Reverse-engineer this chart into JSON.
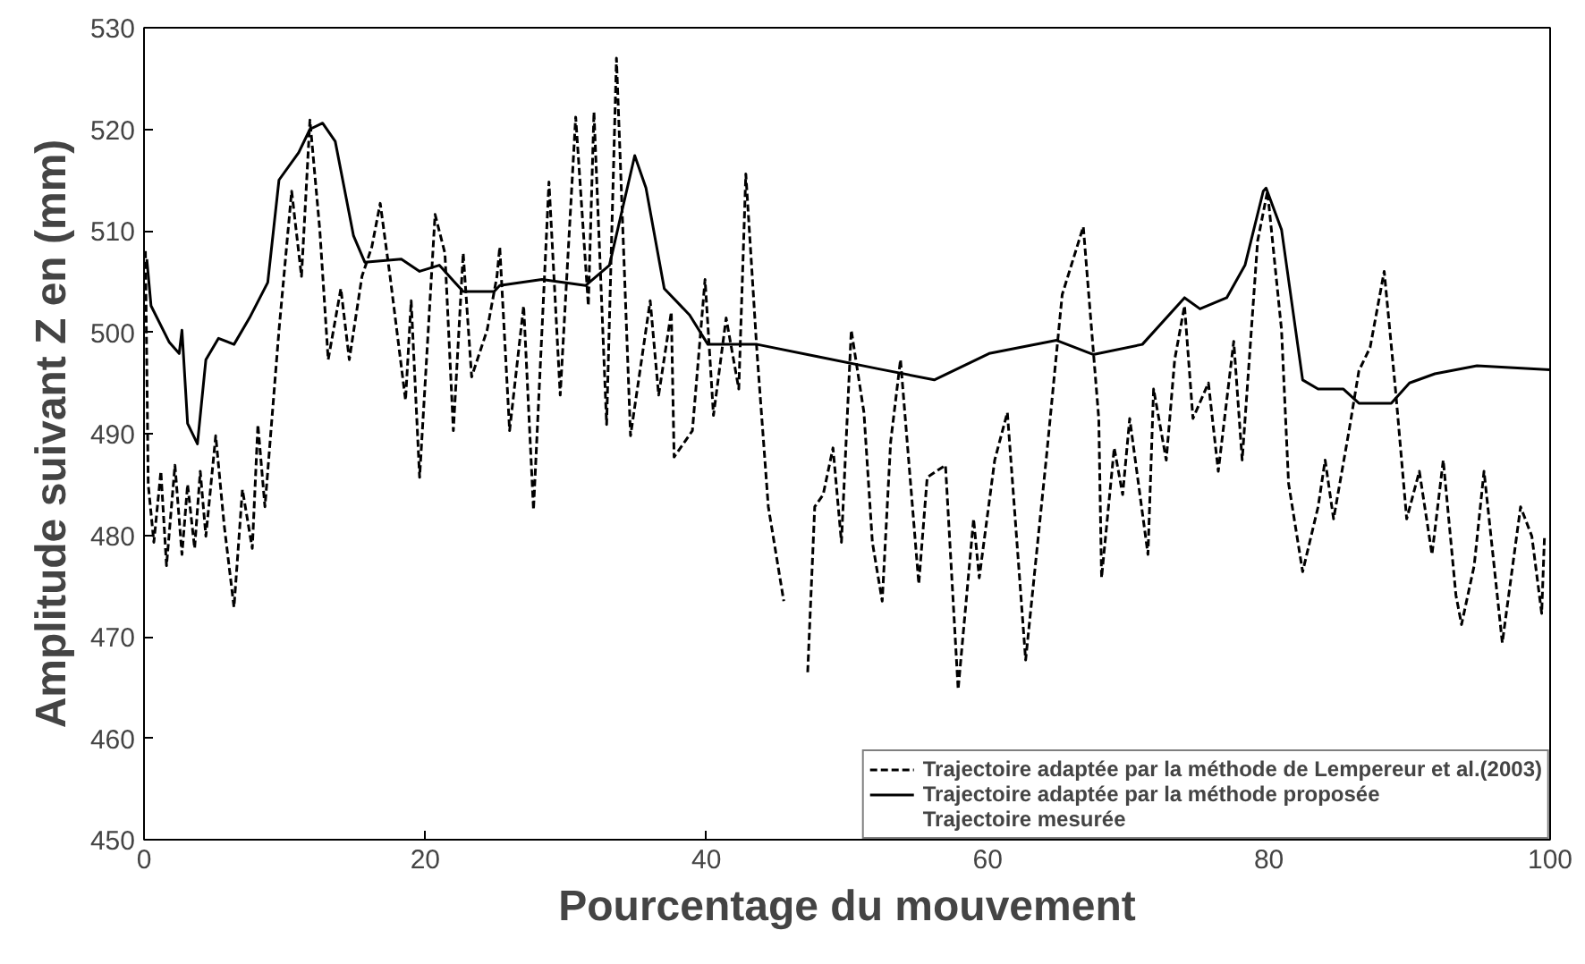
{
  "chart_data": {
    "type": "line",
    "xlabel": "Pourcentage du mouvement",
    "ylabel": "Amplitude suivant Z en (mm)",
    "xlim": [
      0,
      100
    ],
    "ylim": [
      450,
      530
    ],
    "xticks": [
      0,
      20,
      40,
      60,
      80,
      100
    ],
    "yticks": [
      450,
      460,
      470,
      480,
      490,
      500,
      510,
      520,
      530
    ],
    "grid": false,
    "legend": "bottom right",
    "annotations": [
      "Trajectoire mesurée"
    ],
    "series": [
      {
        "name": "Trajectoire adaptée par la méthode de Lempereur et al.(2003)",
        "color": "#000000",
        "line_style": "dashed",
        "x": [
          0.1,
          0.3,
          0.7,
          1.2,
          1.6,
          2.2,
          2.7,
          3.1,
          3.6,
          4.0,
          4.4,
          5.1,
          5.7,
          6.4,
          7.0,
          7.7,
          8.1,
          8.6,
          9.0,
          9.6,
          10.5,
          11.2,
          11.8,
          12.5,
          13.1,
          14.0,
          14.6,
          15.5,
          16.2,
          16.8,
          17.5,
          18.6,
          19.0,
          19.6,
          20.7,
          21.4,
          22.0,
          22.7,
          23.3,
          24.4,
          25.1,
          25.3,
          26.0,
          27.0,
          27.7,
          28.8,
          29.6,
          30.7,
          31.6,
          32.0,
          32.9,
          33.6,
          34.6,
          36.0,
          36.6,
          37.5,
          37.7,
          39.0,
          39.9,
          40.5,
          41.4,
          42.3,
          42.8,
          43.6,
          44.4,
          45.5,
          46.3,
          47.2,
          47.7,
          48.3,
          49.0,
          49.6,
          50.3,
          51.2,
          51.8,
          52.5,
          53.1,
          53.8,
          55.1,
          55.7,
          57.0,
          57.9,
          59.0,
          59.4,
          60.5,
          61.4,
          62.7,
          64.2,
          65.3,
          66.8,
          67.9,
          68.1,
          69.0,
          69.6,
          70.1,
          71.4,
          71.8,
          72.7,
          73.3,
          74.0,
          74.6,
          75.7,
          76.4,
          77.5,
          78.1,
          79.2,
          79.9,
          80.9,
          81.4,
          82.4,
          83.5,
          84.0,
          84.6,
          85.7,
          86.4,
          87.2,
          88.2,
          89.0,
          89.8,
          90.7,
          91.6,
          92.4,
          93.3,
          93.7,
          94.6,
          95.3,
          96.6,
          97.9,
          98.7,
          99.4,
          99.6
        ],
        "values": [
          508,
          485,
          479.3,
          486.3,
          477,
          486.9,
          478.1,
          485,
          478.7,
          486.3,
          479.9,
          489.8,
          481,
          472.9,
          484.5,
          478.7,
          490.9,
          482.8,
          489.8,
          500.2,
          513.9,
          505.5,
          520.9,
          510.1,
          497.3,
          504.3,
          497.3,
          505.5,
          508.4,
          512.7,
          505.5,
          493.3,
          503.1,
          485.7,
          511.6,
          507.8,
          490.3,
          507.8,
          495.6,
          500.2,
          505.5,
          508.4,
          490.3,
          502.6,
          482.5,
          514.8,
          493.8,
          521.2,
          502.6,
          521.7,
          490.9,
          527,
          489.8,
          503.1,
          493.8,
          502,
          487.7,
          490.3,
          505.2,
          491.8,
          501.4,
          494.4,
          515.6,
          497.9,
          482.8,
          473.5,
          null,
          466.5,
          482.8,
          484,
          488.6,
          479.3,
          500.2,
          492.1,
          479.3,
          473.5,
          489.2,
          497.3,
          475.2,
          485.7,
          486.9,
          464.8,
          481.6,
          475.8,
          487.4,
          492.1,
          467.7,
          488,
          503.7,
          510.4,
          491.5,
          475.8,
          488.6,
          484,
          491.5,
          478.1,
          494.4,
          487.4,
          497.3,
          502.6,
          491.5,
          495,
          486.3,
          499.1,
          487.4,
          509,
          513.9,
          500.2,
          485.1,
          476.4,
          482.8,
          487.4,
          481.6,
          490.3,
          496.2,
          498.5,
          506,
          494.4,
          481.6,
          486.3,
          478.1,
          487.4,
          474.1,
          471.2,
          477,
          486.3,
          469.4,
          482.8,
          479.9,
          472.3,
          479.9
        ]
      },
      {
        "name": "Trajectoire adaptée par la méthode proposée",
        "color": "#000000",
        "line_style": "solid",
        "x": [
          0.2,
          0.5,
          1.8,
          2.5,
          2.7,
          3.1,
          3.8,
          4.4,
          5.3,
          6.4,
          7.5,
          8.8,
          9.6,
          11.0,
          11.8,
          12.7,
          13.6,
          14.9,
          15.7,
          18.3,
          19.6,
          21.0,
          22.7,
          24.9,
          25.3,
          28.3,
          31.4,
          33.1,
          34.9,
          35.7,
          37.0,
          38.8,
          40.1,
          43.6,
          47.9,
          52.2,
          56.2,
          60.1,
          64.9,
          67.5,
          71.0,
          74.0,
          75.1,
          77.0,
          78.3,
          79.6,
          79.8,
          80.9,
          82.4,
          83.5,
          85.3,
          86.4,
          88.7,
          90.0,
          91.8,
          94.8,
          100
        ],
        "values": [
          507.2,
          502.6,
          499,
          497.9,
          500.2,
          491,
          489,
          497.3,
          499.4,
          498.8,
          501.4,
          504.9,
          515,
          517.7,
          520,
          520.6,
          518.8,
          509.5,
          506.9,
          507.2,
          506,
          506.6,
          504,
          504,
          504.6,
          505.2,
          504.6,
          506.6,
          517.4,
          514.2,
          504.3,
          501.7,
          498.8,
          498.8,
          497.6,
          496.4,
          495.3,
          497.9,
          499.2,
          497.8,
          498.8,
          503.4,
          502.3,
          503.4,
          506.6,
          513.9,
          514.2,
          510.1,
          495.3,
          494.4,
          494.4,
          493,
          493,
          495,
          495.9,
          496.7,
          496.3
        ]
      }
    ]
  }
}
